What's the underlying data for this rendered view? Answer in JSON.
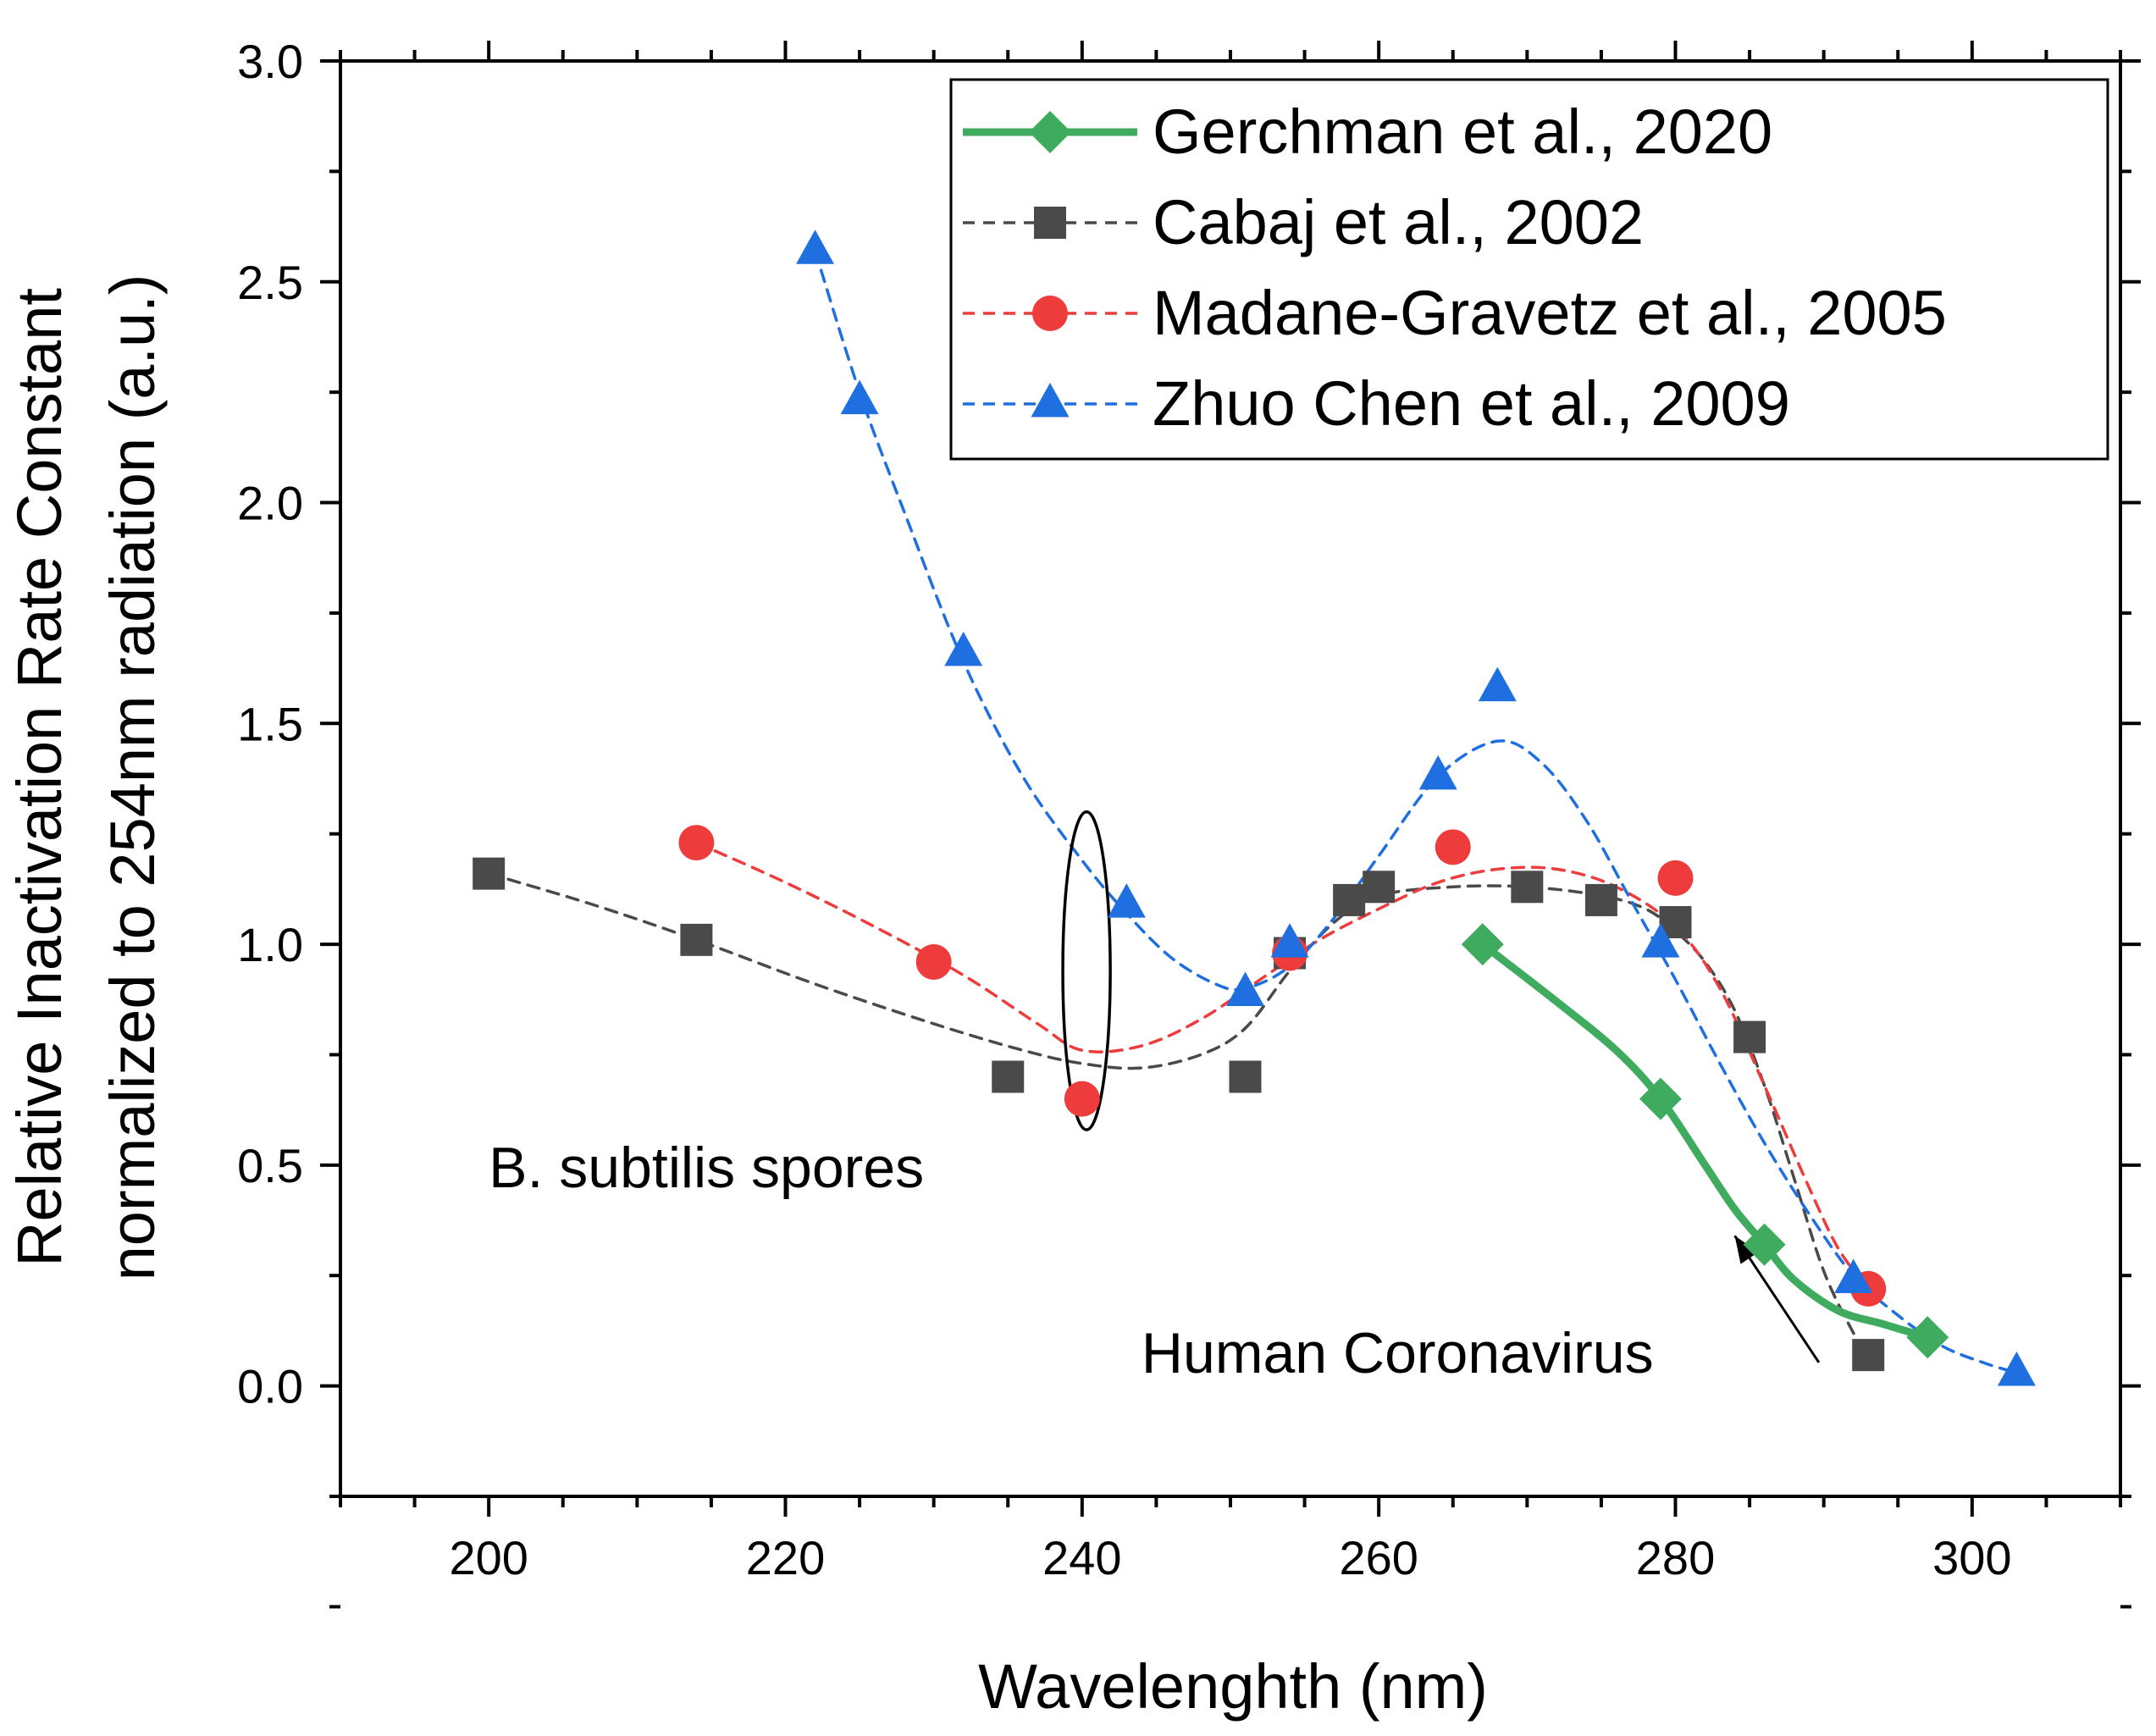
{
  "chart_data": {
    "type": "scatter",
    "xlabel": "Wavelenghth (nm)",
    "ylabel_lines": [
      "Relative Inactivation Rate Constant",
      "normalized to 254nm radiation (a.u.)"
    ],
    "xlim": [
      190,
      310
    ],
    "ylim": [
      -0.25,
      3.0
    ],
    "xticks": [
      200,
      220,
      240,
      260,
      280,
      300
    ],
    "xtick_labels": [
      "200",
      "220",
      "240",
      "260",
      "280",
      "300"
    ],
    "yticks": [
      0.0,
      0.5,
      1.0,
      1.5,
      2.0,
      2.5,
      3.0
    ],
    "ytick_labels": [
      "0.0",
      "0.5",
      "1.0",
      "1.5",
      "2.0",
      "2.5",
      "3.0"
    ],
    "legend_position": "top-right",
    "series": [
      {
        "name": "Gerchman et al., 2020",
        "color": "#3fab5f",
        "marker": "diamond",
        "line": "solid",
        "x": [
          267,
          279,
          286,
          297
        ],
        "y": [
          1.0,
          0.65,
          0.32,
          0.11
        ]
      },
      {
        "name": "Cabaj et al., 2002",
        "color": "#4a4a4a",
        "marker": "square",
        "line": "dashed",
        "x": [
          200,
          214,
          235,
          251,
          254,
          258,
          260,
          270,
          275,
          280,
          285,
          293
        ],
        "y": [
          1.16,
          1.01,
          0.7,
          0.7,
          0.98,
          1.1,
          1.13,
          1.13,
          1.1,
          1.05,
          0.79,
          0.07
        ]
      },
      {
        "name": "Madane-Gravetz et al., 2005",
        "color": "#ee3b3b",
        "marker": "circle",
        "line": "dashed",
        "x": [
          214,
          230,
          240,
          254,
          265,
          280,
          293
        ],
        "y": [
          1.23,
          0.96,
          0.65,
          0.98,
          1.22,
          1.15,
          0.22
        ]
      },
      {
        "name": "Zhuo Chen et al., 2009",
        "color": "#1f6fe0",
        "marker": "triangle",
        "line": "dashed",
        "x": [
          222,
          225,
          232,
          243,
          251,
          254,
          264,
          268,
          279,
          292,
          303
        ],
        "y": [
          2.57,
          2.23,
          1.66,
          1.09,
          0.89,
          1.0,
          1.38,
          1.58,
          1.0,
          0.24,
          0.03
        ]
      }
    ],
    "fits": [
      {
        "series": "Gerchman et al., 2020",
        "x": [
          267,
          272,
          276,
          279,
          282,
          284,
          286,
          288,
          291,
          294,
          297
        ],
        "y": [
          1.0,
          0.87,
          0.76,
          0.65,
          0.5,
          0.4,
          0.32,
          0.24,
          0.17,
          0.14,
          0.11
        ]
      },
      {
        "series": "Cabaj et al., 2002",
        "x": [
          200,
          207,
          214,
          222,
          230,
          236,
          240,
          244,
          248,
          251,
          254,
          257,
          260,
          265,
          270,
          275,
          278,
          280,
          282,
          284,
          286,
          288,
          290,
          292,
          293
        ],
        "y": [
          1.16,
          1.09,
          1.01,
          0.91,
          0.82,
          0.76,
          0.73,
          0.72,
          0.75,
          0.81,
          0.94,
          1.05,
          1.11,
          1.13,
          1.13,
          1.11,
          1.08,
          1.03,
          0.96,
          0.85,
          0.68,
          0.47,
          0.26,
          0.12,
          0.07
        ]
      },
      {
        "series": "Madane-Gravetz et al., 2005",
        "x": [
          214,
          220,
          226,
          232,
          237,
          240,
          244,
          248,
          252,
          256,
          260,
          264,
          268,
          272,
          276,
          280,
          283,
          286,
          289,
          291,
          293
        ],
        "y": [
          1.23,
          1.14,
          1.04,
          0.93,
          0.82,
          0.76,
          0.77,
          0.83,
          0.92,
          1.01,
          1.08,
          1.14,
          1.17,
          1.17,
          1.13,
          1.04,
          0.9,
          0.68,
          0.45,
          0.31,
          0.22
        ]
      },
      {
        "series": "Zhuo Chen et al., 2009",
        "x": [
          222,
          225,
          228,
          232,
          236,
          240,
          243,
          246,
          249,
          251,
          254,
          257,
          260,
          264,
          268,
          271,
          274,
          277,
          280,
          283,
          286,
          289,
          292,
          295,
          298,
          301,
          303
        ],
        "y": [
          2.57,
          2.25,
          1.98,
          1.64,
          1.38,
          1.19,
          1.07,
          0.97,
          0.91,
          0.9,
          0.95,
          1.06,
          1.2,
          1.38,
          1.46,
          1.41,
          1.28,
          1.1,
          0.92,
          0.73,
          0.55,
          0.39,
          0.25,
          0.16,
          0.09,
          0.05,
          0.03
        ]
      }
    ],
    "annotations": [
      {
        "id": "spores",
        "text": "B. subtilis spores",
        "x": 200,
        "y": 0.45
      },
      {
        "id": "coronavirus",
        "text": "Human Coronavirus",
        "x": 244,
        "y": 0.03,
        "arrow_to": [
          284,
          0.34
        ]
      }
    ],
    "ellipse": {
      "cx": 240.3,
      "cy": 0.94,
      "rx": 1.6,
      "ry": 0.36
    }
  }
}
